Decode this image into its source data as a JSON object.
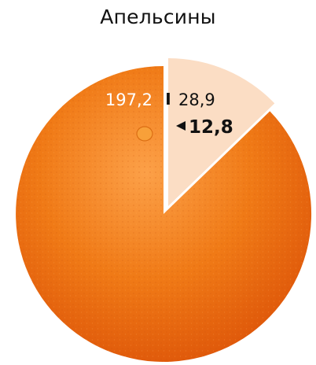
{
  "chart_data": {
    "type": "pie",
    "title": "Апельсины",
    "slices": [
      {
        "label": "197,2",
        "value": 197.2,
        "color": "#F07A16"
      },
      {
        "label": "28,9",
        "value": 28.9,
        "color": "#FBDDC4"
      }
    ],
    "annotation": {
      "label": "12,8",
      "marker": "left-pointing-triangle",
      "bold": true
    },
    "separator": "I",
    "colors": {
      "fruit": "#F07A16",
      "fruit_highlight": "#FCA048",
      "fruit_shadow": "#DC5208",
      "peel_segment": "#FBDDC4",
      "text_light": "#FFFFFF",
      "text_dark": "#111111"
    }
  }
}
